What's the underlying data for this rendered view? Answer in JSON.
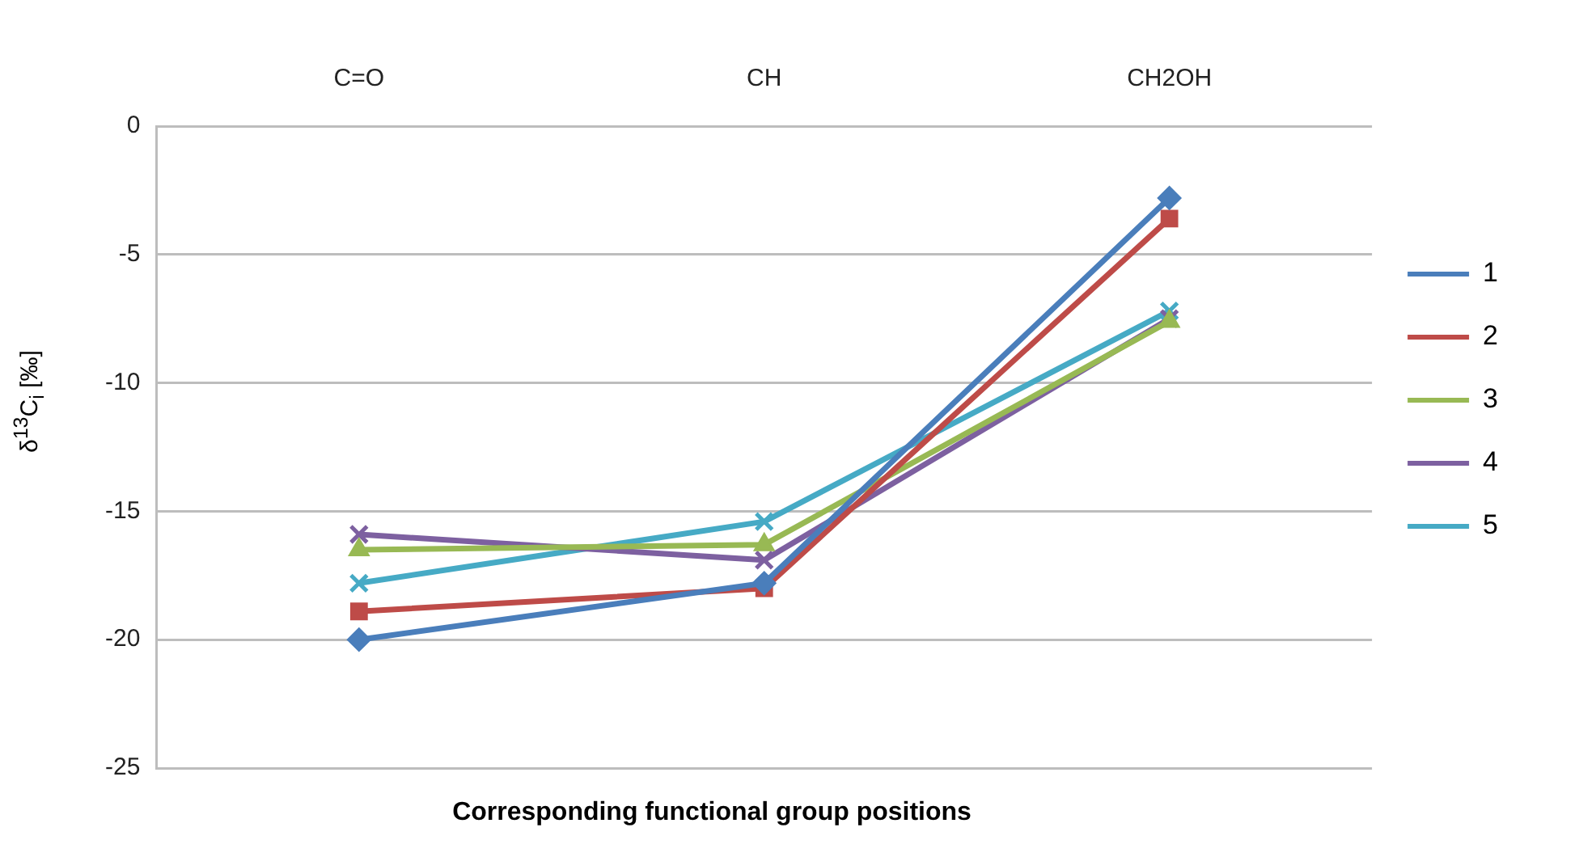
{
  "chart_data": {
    "type": "line",
    "xlabel": "Corresponding functional group positions",
    "ylabel": "δ$^{13}$C$_{i}$ [‰]",
    "categories": [
      "C=O",
      "CH",
      "CH2OH"
    ],
    "series": [
      {
        "name": "1",
        "color": "#4a7ebb",
        "marker": "diamond",
        "values": [
          -20.0,
          -17.8,
          -2.8
        ]
      },
      {
        "name": "2",
        "color": "#be4b48",
        "marker": "square",
        "values": [
          -18.9,
          -18.0,
          -3.6
        ]
      },
      {
        "name": "3",
        "color": "#98b954",
        "marker": "triangle",
        "values": [
          -16.5,
          -16.3,
          -7.6
        ]
      },
      {
        "name": "4",
        "color": "#7d60a0",
        "marker": "cross",
        "values": [
          -15.9,
          -16.9,
          -7.5
        ]
      },
      {
        "name": "5",
        "color": "#46aac5",
        "marker": "cross",
        "values": [
          -17.8,
          -15.4,
          -7.2
        ]
      }
    ],
    "ylim": [
      -25,
      0
    ],
    "yticks": [
      -25,
      -20,
      -15,
      -10,
      -5,
      0
    ],
    "grid": "y",
    "legend": "right"
  }
}
